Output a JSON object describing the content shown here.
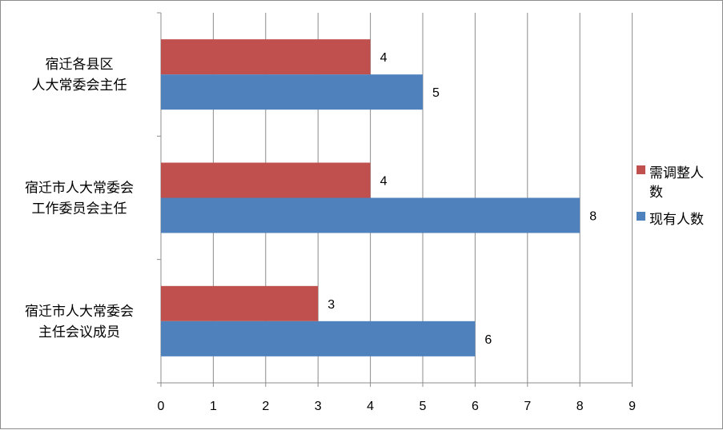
{
  "chart_data": {
    "type": "bar",
    "orientation": "horizontal",
    "categories": [
      [
        "宿迁市人大常委会",
        "主任会议成员"
      ],
      [
        "宿迁市人大常委会",
        "工作委员会主任"
      ],
      [
        "宿迁各县区",
        "人大常委会主任"
      ]
    ],
    "series": [
      {
        "name": "需调整人数",
        "values": [
          3,
          4,
          4
        ],
        "color": "#c0504d"
      },
      {
        "name": "现有人数",
        "values": [
          6,
          8,
          5
        ],
        "color": "#4f81bd"
      }
    ],
    "xlim": [
      0,
      9
    ],
    "xticks": [
      "0",
      "1",
      "2",
      "3",
      "4",
      "5",
      "6",
      "7",
      "8",
      "9"
    ],
    "grid": "vertical",
    "legend": {
      "position": "right",
      "items": [
        {
          "lines": [
            "需调整人",
            "数"
          ],
          "color": "#c0504d"
        },
        {
          "lines": [
            "现有人数"
          ],
          "color": "#4f81bd"
        }
      ]
    }
  }
}
